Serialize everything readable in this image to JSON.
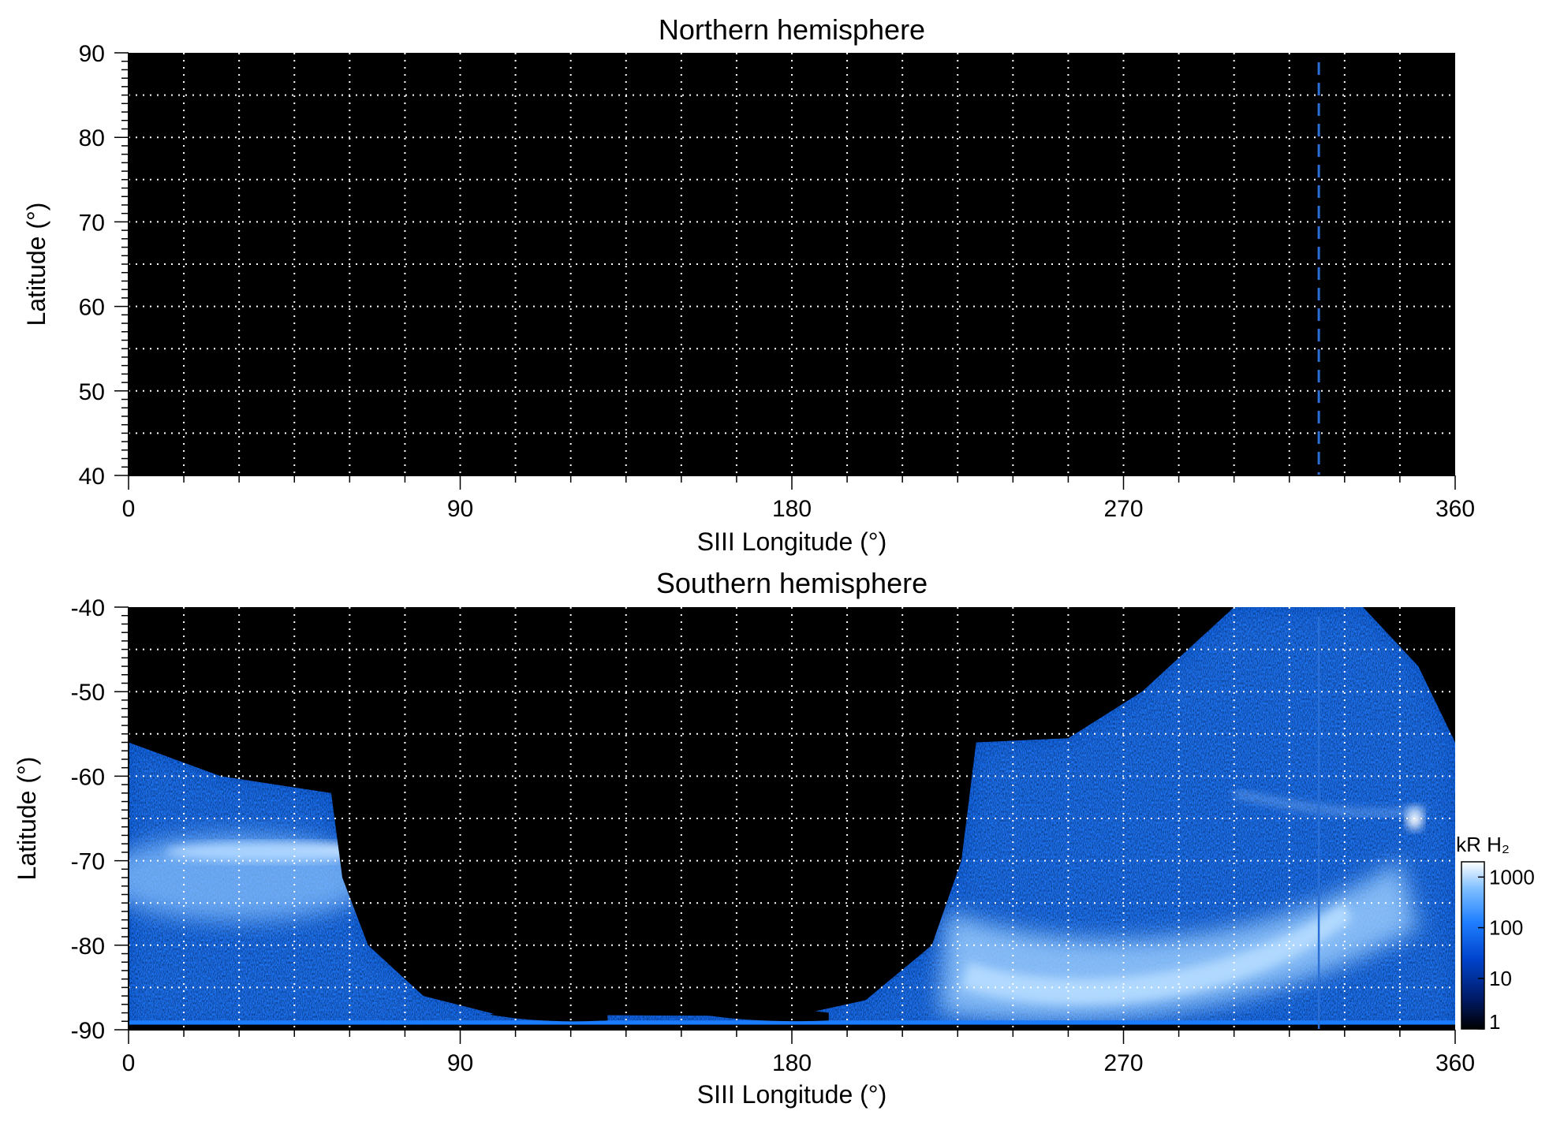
{
  "chart_data": [
    {
      "type": "heatmap",
      "title": "Northern hemisphere",
      "xlabel": "SIII Longitude (°)",
      "ylabel": "Latitude (°)",
      "xlim": [
        0,
        360
      ],
      "ylim": [
        40,
        90
      ],
      "xticks": [
        {
          "value": 0,
          "label": "0"
        },
        {
          "value": 90,
          "label": "90"
        },
        {
          "value": 180,
          "label": "180"
        },
        {
          "value": 270,
          "label": "270"
        },
        {
          "value": 360,
          "label": "360"
        }
      ],
      "yticks": [
        {
          "value": 40,
          "label": "40"
        },
        {
          "value": 50,
          "label": "50"
        },
        {
          "value": 60,
          "label": "60"
        },
        {
          "value": 70,
          "label": "70"
        },
        {
          "value": 80,
          "label": "80"
        },
        {
          "value": 90,
          "label": "90"
        }
      ],
      "grid": {
        "dotted": true,
        "x_step": 15,
        "y_step": 5
      },
      "background": "#000000",
      "annotations": [
        {
          "type": "vline",
          "x": 323,
          "style": "dashed",
          "color": "#2a6fd6"
        }
      ],
      "emission": "none"
    },
    {
      "type": "heatmap",
      "title": "Southern hemisphere",
      "xlabel": "SIII Longitude (°)",
      "ylabel": "Latitude (°)",
      "xlim": [
        0,
        360
      ],
      "ylim": [
        -90,
        -40
      ],
      "xticks": [
        {
          "value": 0,
          "label": "0"
        },
        {
          "value": 90,
          "label": "90"
        },
        {
          "value": 180,
          "label": "180"
        },
        {
          "value": 270,
          "label": "270"
        },
        {
          "value": 360,
          "label": "360"
        }
      ],
      "yticks": [
        {
          "value": -40,
          "label": "-40"
        },
        {
          "value": -50,
          "label": "-50"
        },
        {
          "value": -60,
          "label": "-60"
        },
        {
          "value": -70,
          "label": "-70"
        },
        {
          "value": -80,
          "label": "-80"
        },
        {
          "value": -90,
          "label": "-90"
        }
      ],
      "grid": {
        "dotted": true,
        "x_step": 15,
        "y_step": 5
      },
      "background": "#000000",
      "annotations": [
        {
          "type": "vline",
          "x": 323,
          "style": "solid",
          "color": "#2a6fd6"
        }
      ],
      "colorbar": {
        "title": "kR H₂",
        "scale": "log",
        "range": [
          1,
          2000
        ],
        "ticks": [
          {
            "value": 1,
            "label": "1"
          },
          {
            "value": 10,
            "label": "10"
          },
          {
            "value": 100,
            "label": "100"
          },
          {
            "value": 1000,
            "label": "1000"
          }
        ],
        "colors": [
          "#000000",
          "#001a66",
          "#0044cc",
          "#1f7fff",
          "#7fbfff",
          "#ffffff"
        ]
      },
      "emission": {
        "left_region": {
          "lon_range": [
            0,
            58
          ],
          "top_lat_at_0": -56,
          "top_lat_at_edge": -62,
          "bright_band_lat": -69,
          "bright_band_lon": 40
        },
        "right_region": {
          "lon_range": [
            230,
            360
          ],
          "top_lat_at_230": -56,
          "top_lat_at_300": -40,
          "bright_band_lat": -81,
          "bright_band_lon": 270
        },
        "spot": {
          "lon": 349,
          "lat": -65
        },
        "bottom_strip": {
          "lat": -88.5,
          "lon_range": [
            0,
            360
          ]
        }
      }
    }
  ]
}
